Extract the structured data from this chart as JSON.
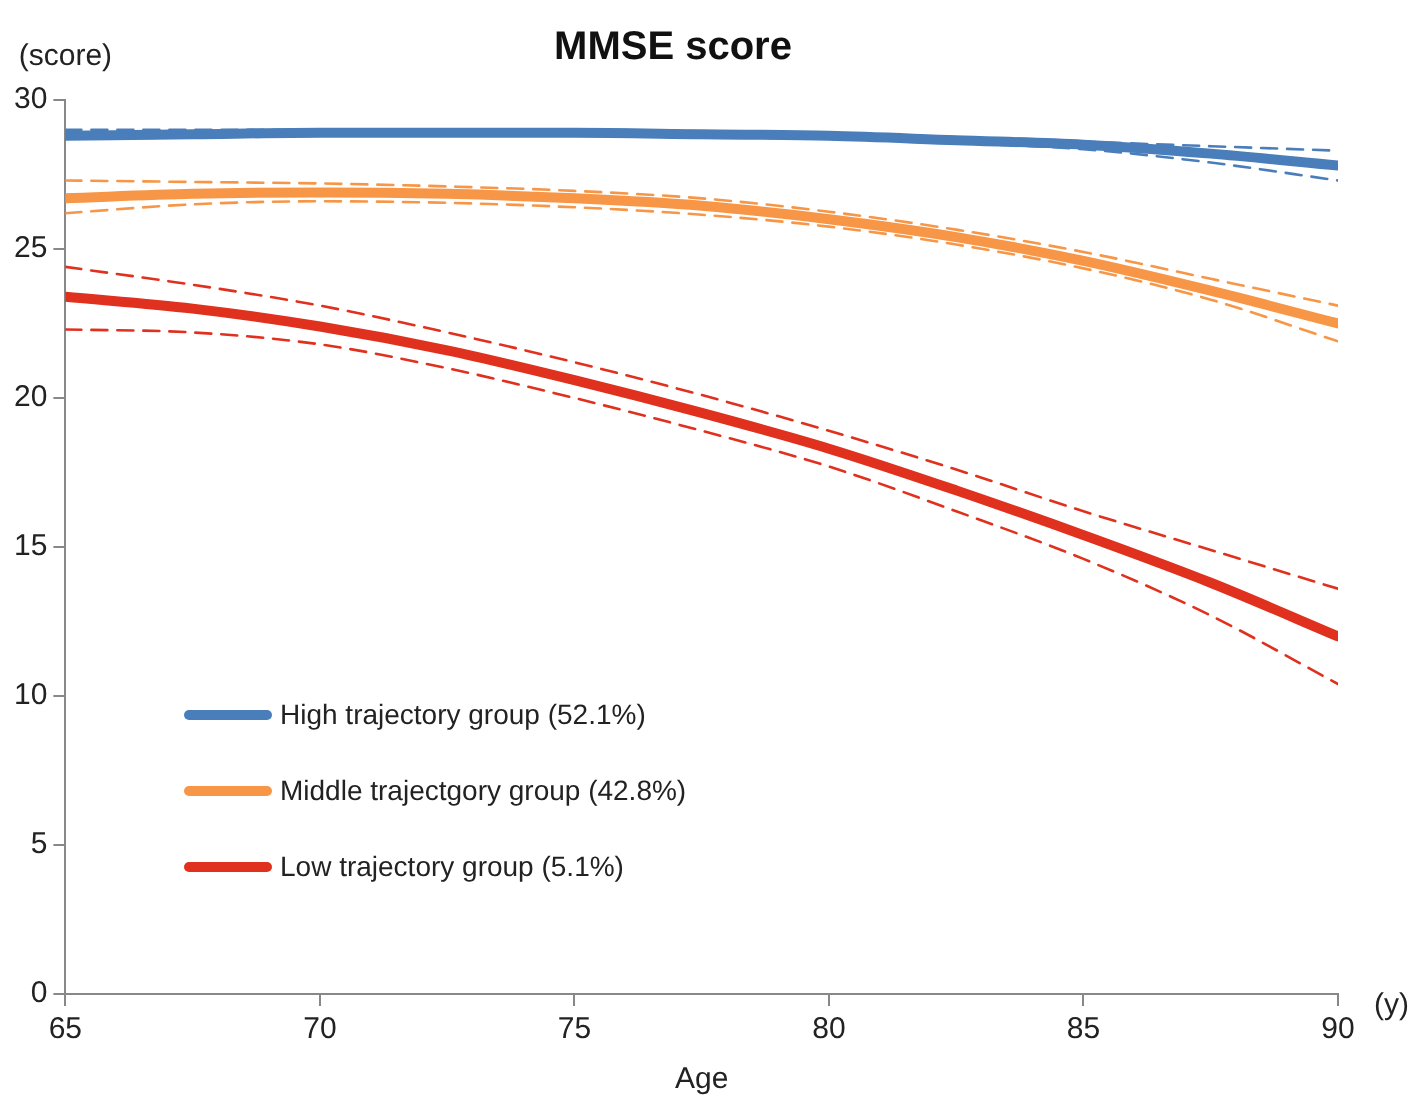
{
  "chart_data": {
    "type": "line",
    "title": "MMSE score",
    "xlabel": "Age",
    "ylabel": "(score)",
    "annotations": [
      "(y)"
    ],
    "x": [
      65,
      67.5,
      70,
      72.5,
      75,
      77.5,
      80,
      82.5,
      85,
      87.5,
      90
    ],
    "xlim": [
      65,
      90
    ],
    "xticks": [
      65,
      70,
      75,
      80,
      85,
      90
    ],
    "ylim": [
      0,
      30
    ],
    "yticks": [
      0,
      5,
      10,
      15,
      20,
      25,
      30
    ],
    "grid": false,
    "legend": "bottom left",
    "marker": "none",
    "line_style": "solid",
    "series": [
      {
        "name": "High trajectory group (52.1%)",
        "color": "#4a7ebb",
        "values": [
          28.8,
          28.85,
          28.9,
          28.9,
          28.9,
          28.85,
          28.8,
          28.65,
          28.5,
          28.2,
          27.8
        ]
      },
      {
        "color": "#4a7ebb",
        "line_style": "dashed",
        "values": [
          28.7,
          28.75,
          28.8,
          28.8,
          28.8,
          28.75,
          28.7,
          28.55,
          28.35,
          27.9,
          27.3
        ]
      },
      {
        "color": "#4a7ebb",
        "line_style": "dashed",
        "values": [
          29.0,
          29.0,
          29.0,
          29.0,
          29.0,
          28.95,
          28.85,
          28.75,
          28.6,
          28.45,
          28.3
        ]
      },
      {
        "name": "Middle trajectgory group (42.8%)",
        "color": "#f79646",
        "values": [
          26.7,
          26.85,
          26.9,
          26.85,
          26.7,
          26.45,
          26.0,
          25.4,
          24.6,
          23.6,
          22.5
        ]
      },
      {
        "color": "#f79646",
        "line_style": "dashed",
        "values": [
          26.2,
          26.5,
          26.6,
          26.55,
          26.4,
          26.15,
          25.75,
          25.15,
          24.35,
          23.3,
          21.9
        ]
      },
      {
        "color": "#f79646",
        "line_style": "dashed",
        "values": [
          27.3,
          27.25,
          27.2,
          27.1,
          26.95,
          26.7,
          26.25,
          25.65,
          24.9,
          24.0,
          23.1
        ]
      },
      {
        "name": "Low trajectory group (5.1%)",
        "color": "#e0301e",
        "values": [
          23.4,
          23.0,
          22.4,
          21.6,
          20.6,
          19.5,
          18.3,
          16.9,
          15.4,
          13.8,
          12.0
        ]
      },
      {
        "color": "#e0301e",
        "line_style": "dashed",
        "values": [
          24.4,
          23.8,
          23.1,
          22.2,
          21.2,
          20.1,
          18.9,
          17.6,
          16.2,
          14.9,
          13.6
        ]
      },
      {
        "color": "#e0301e",
        "line_style": "dashed",
        "values": [
          22.3,
          22.2,
          21.8,
          21.0,
          20.0,
          18.9,
          17.7,
          16.2,
          14.6,
          12.7,
          10.4
        ]
      }
    ]
  }
}
